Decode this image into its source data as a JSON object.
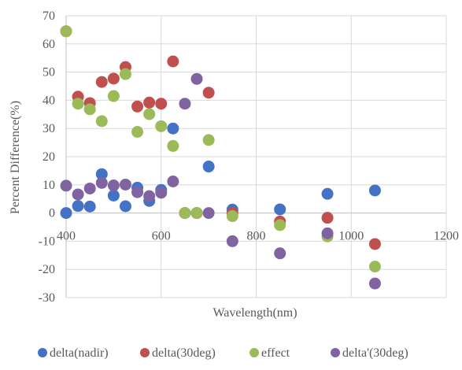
{
  "chart_data": {
    "type": "scatter",
    "title": "",
    "xlabel": "Wavelength(nm)",
    "ylabel": "Percent Difference(%)",
    "xlim": [
      400,
      1200
    ],
    "ylim": [
      -30,
      70
    ],
    "x_ticks": [
      400,
      600,
      800,
      1000,
      1200
    ],
    "x_tick_labels": [
      "400",
      "600",
      "800",
      "1000",
      "1200"
    ],
    "y_ticks": [
      -30,
      -20,
      -10,
      0,
      10,
      20,
      30,
      40,
      50,
      60,
      70
    ],
    "y_tick_labels": [
      "-30",
      "-20",
      "-10",
      "0",
      "10",
      "20",
      "30",
      "40",
      "50",
      "60",
      "70"
    ],
    "grid": true,
    "legend_position": "bottom",
    "series": [
      {
        "name": "delta(nadir)",
        "color": "#4472C4",
        "points": [
          [
            400,
            0
          ],
          [
            425,
            2.5
          ],
          [
            450,
            2.3
          ],
          [
            475,
            13.8
          ],
          [
            500,
            6.2
          ],
          [
            525,
            2.4
          ],
          [
            550,
            9
          ],
          [
            575,
            4.3
          ],
          [
            600,
            8.2
          ],
          [
            625,
            30
          ],
          [
            650,
            0
          ],
          [
            675,
            0
          ],
          [
            700,
            16.5
          ],
          [
            750,
            1.2
          ],
          [
            850,
            1.3
          ],
          [
            950,
            6.8
          ],
          [
            1050,
            8
          ]
        ]
      },
      {
        "name": "delta(30deg)",
        "color": "#C0504D",
        "points": [
          [
            400,
            64.5
          ],
          [
            425,
            41.3
          ],
          [
            450,
            39
          ],
          [
            475,
            46.5
          ],
          [
            500,
            47.7
          ],
          [
            525,
            51.8
          ],
          [
            550,
            37.8
          ],
          [
            575,
            39.2
          ],
          [
            600,
            38.8
          ],
          [
            625,
            53.8
          ],
          [
            650,
            0
          ],
          [
            675,
            0
          ],
          [
            700,
            42.7
          ],
          [
            750,
            0
          ],
          [
            850,
            -3
          ],
          [
            950,
            -1.7
          ],
          [
            1050,
            -11
          ]
        ]
      },
      {
        "name": "effect",
        "color": "#9BBB59",
        "points": [
          [
            400,
            64.5
          ],
          [
            425,
            38.8
          ],
          [
            450,
            36.8
          ],
          [
            475,
            32.6
          ],
          [
            500,
            41.5
          ],
          [
            525,
            49.3
          ],
          [
            550,
            28.8
          ],
          [
            575,
            35.1
          ],
          [
            600,
            30.8
          ],
          [
            625,
            23.8
          ],
          [
            650,
            0
          ],
          [
            675,
            0
          ],
          [
            700,
            25.9
          ],
          [
            750,
            -1.1
          ],
          [
            850,
            -4.3
          ],
          [
            950,
            -8.3
          ],
          [
            1050,
            -19
          ]
        ]
      },
      {
        "name": "delta'(30deg)",
        "color": "#8064A2",
        "points": [
          [
            400,
            9.7
          ],
          [
            425,
            6.6
          ],
          [
            450,
            8.7
          ],
          [
            475,
            10.7
          ],
          [
            500,
            9.8
          ],
          [
            525,
            10.1
          ],
          [
            550,
            7.4
          ],
          [
            575,
            6
          ],
          [
            600,
            7.2
          ],
          [
            625,
            11.2
          ],
          [
            650,
            38.8
          ],
          [
            675,
            47.6
          ],
          [
            700,
            0
          ],
          [
            750,
            -10
          ],
          [
            850,
            -14.3
          ],
          [
            950,
            -7.2
          ],
          [
            1050,
            -25
          ]
        ]
      }
    ]
  }
}
